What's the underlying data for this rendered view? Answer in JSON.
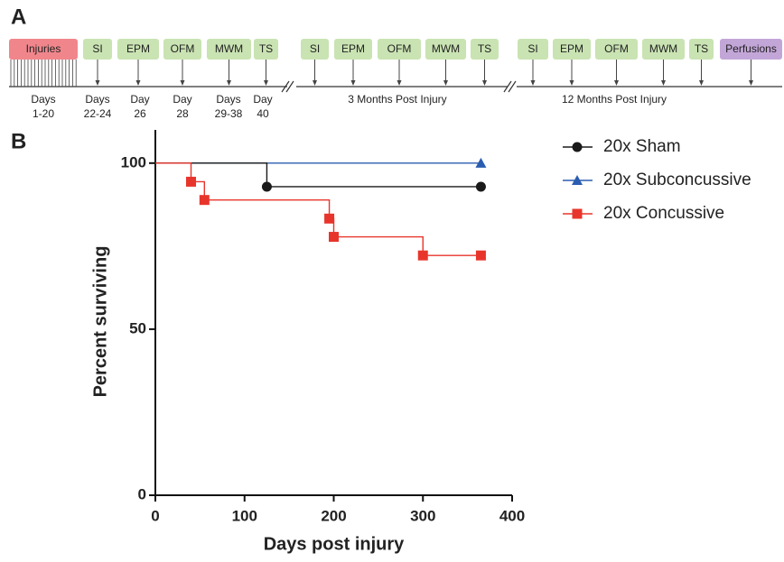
{
  "panel_a": {
    "label": "A",
    "boxes": [
      {
        "label": "Injuries",
        "color": "#f0868c"
      },
      {
        "label": "SI",
        "color": "#c9e3b2"
      },
      {
        "label": "EPM",
        "color": "#c9e3b2"
      },
      {
        "label": "OFM",
        "color": "#c9e3b2"
      },
      {
        "label": "MWM",
        "color": "#c9e3b2"
      },
      {
        "label": "TS",
        "color": "#c9e3b2"
      },
      {
        "label": "SI",
        "color": "#c9e3b2"
      },
      {
        "label": "EPM",
        "color": "#c9e3b2"
      },
      {
        "label": "OFM",
        "color": "#c9e3b2"
      },
      {
        "label": "MWM",
        "color": "#c9e3b2"
      },
      {
        "label": "TS",
        "color": "#c9e3b2"
      },
      {
        "label": "SI",
        "color": "#c9e3b2"
      },
      {
        "label": "EPM",
        "color": "#c9e3b2"
      },
      {
        "label": "OFM",
        "color": "#c9e3b2"
      },
      {
        "label": "MWM",
        "color": "#c9e3b2"
      },
      {
        "label": "TS",
        "color": "#c9e3b2"
      },
      {
        "label": "Perfusions",
        "color": "#c3a6d8"
      }
    ],
    "day_labels": [
      [
        "Days",
        "1-20"
      ],
      [
        "Days",
        "22-24"
      ],
      [
        "Day",
        "26"
      ],
      [
        "Day",
        "28"
      ],
      [
        "Days",
        "29-38"
      ],
      [
        "Day",
        "40"
      ]
    ],
    "period_labels": [
      "3 Months Post Injury",
      "12 Months Post Injury"
    ]
  },
  "chart_data": {
    "type": "step",
    "panel_label": "B",
    "xlabel": "Days post injury",
    "ylabel": "Percent surviving",
    "xlim": [
      0,
      400
    ],
    "xticks": [
      0,
      100,
      200,
      300,
      400
    ],
    "ylim": [
      0,
      110
    ],
    "yticks": [
      0,
      50,
      100
    ],
    "legend": "top-right",
    "series": [
      {
        "name": "20x Subconcussive",
        "color": "#2a5db0",
        "marker": "triangle",
        "x": [
          0,
          365
        ],
        "values": [
          100,
          100
        ]
      },
      {
        "name": "20x Sham",
        "color": "#1a1a1a",
        "marker": "circle",
        "x": [
          0,
          125,
          365
        ],
        "values": [
          100,
          92.9,
          92.9
        ]
      },
      {
        "name": "20x Concussive",
        "color": "#e8352b",
        "marker": "square",
        "x": [
          0,
          40,
          55,
          195,
          200,
          300,
          365
        ],
        "values": [
          100,
          94.4,
          88.9,
          83.3,
          77.8,
          72.2,
          72.2
        ]
      }
    ]
  }
}
